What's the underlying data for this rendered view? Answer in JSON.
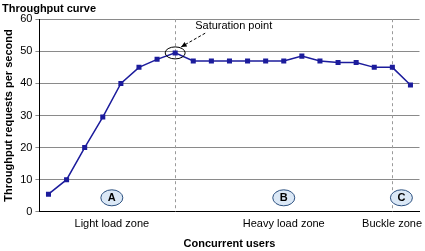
{
  "chart_data": {
    "type": "line",
    "title": "Throughput curve",
    "x_label": "Concurrent users",
    "y_label": "Throughput requests per second",
    "categories": [
      null,
      null,
      null,
      null,
      null,
      null,
      null,
      null,
      null,
      null,
      null,
      null,
      null,
      null,
      null,
      null,
      null,
      null,
      null,
      null,
      null
    ],
    "values": [
      5.5,
      10,
      20,
      29.5,
      40,
      45,
      47.5,
      49.5,
      47,
      47,
      47,
      47,
      47,
      47,
      48.5,
      47,
      46.5,
      46.5,
      45,
      45,
      39.5
    ],
    "color": "#1c1c9c",
    "marker": "square",
    "ylim": [
      0,
      60
    ],
    "yticks": [
      0,
      10,
      20,
      30,
      40,
      50,
      60
    ],
    "grid": true,
    "tick_labels": "y",
    "annotations": [
      {
        "text": "Saturation point",
        "index": 7
      }
    ],
    "zones": [
      {
        "marker": "A",
        "label": "Light load zone",
        "from": 0,
        "to": 7
      },
      {
        "marker": "B",
        "label": "Heavy load zone",
        "from": 7,
        "to": 19
      },
      {
        "marker": "C",
        "label": "Buckle zone",
        "from": 19,
        "to": 20
      }
    ]
  }
}
